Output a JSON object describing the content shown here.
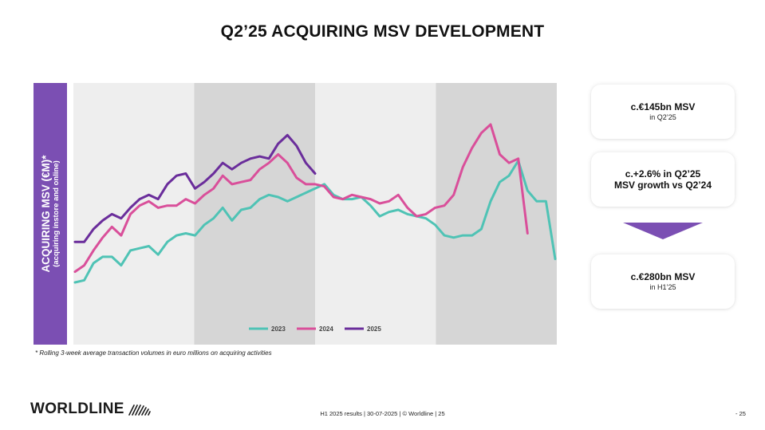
{
  "title": "Q2’25 ACQUIRING MSV DEVELOPMENT",
  "colors": {
    "accent_purple": "#7b4fb3",
    "series_2023": "#4fc3b5",
    "series_2024": "#d94f9a",
    "series_2025": "#6a2d9b",
    "band_light": "#eeeeee",
    "band_dark": "#d6d6d6"
  },
  "chart_data": {
    "type": "line",
    "ylabel": "ACQUIRING MSV (€M)*",
    "ylabel_sub": "(acquiring instore and online)",
    "xlabel": "",
    "axes_numbers_shown": false,
    "x_unit": "week (approx. index)",
    "quarter_bands": [
      "light",
      "dark",
      "light",
      "dark"
    ],
    "grid": false,
    "legend_position": "bottom-center",
    "series": [
      {
        "name": "2023",
        "values": [
          17,
          18,
          26,
          29,
          29,
          25,
          32,
          33,
          34,
          30,
          36,
          39,
          40,
          39,
          44,
          47,
          52,
          46,
          51,
          52,
          56,
          58,
          57,
          55,
          57,
          59,
          61,
          63,
          58,
          56,
          56,
          57,
          53,
          48,
          50,
          51,
          49,
          48,
          47,
          44,
          39,
          38,
          39,
          39,
          42,
          55,
          64,
          67,
          74,
          60,
          55,
          55,
          28
        ]
      },
      {
        "name": "2024",
        "values": [
          22,
          25,
          32,
          38,
          43,
          39,
          49,
          53,
          55,
          52,
          53,
          53,
          56,
          54,
          58,
          61,
          67,
          63,
          64,
          65,
          70,
          73,
          77,
          73,
          66,
          63,
          63,
          62,
          57,
          56,
          58,
          57,
          56,
          54,
          55,
          58,
          52,
          48,
          49,
          52,
          53,
          58,
          71,
          80,
          87,
          91,
          77,
          73,
          75,
          40
        ]
      },
      {
        "name": "2025",
        "values": [
          36,
          36,
          42,
          46,
          49,
          47,
          52,
          56,
          58,
          56,
          63,
          67,
          68,
          61,
          64,
          68,
          73,
          70,
          73,
          75,
          76,
          75,
          82,
          86,
          81,
          73,
          68
        ]
      }
    ],
    "footnote": "* Rolling 3-week average transaction volumes in euro millions on acquiring activities"
  },
  "cards": [
    {
      "big": "c.€145bn MSV",
      "small": "in Q2’25"
    },
    {
      "big": "c.+2.6% in Q2’25",
      "big2": "MSV growth vs Q2’24"
    },
    {
      "big": "c.€280bn MSV",
      "small": "in H1’25"
    }
  ],
  "footer": {
    "logo_text": "WORLDLINE",
    "center_text": "H1 2025 results | 30-07-2025 | © Worldline | 25",
    "page_number": "- 25"
  }
}
